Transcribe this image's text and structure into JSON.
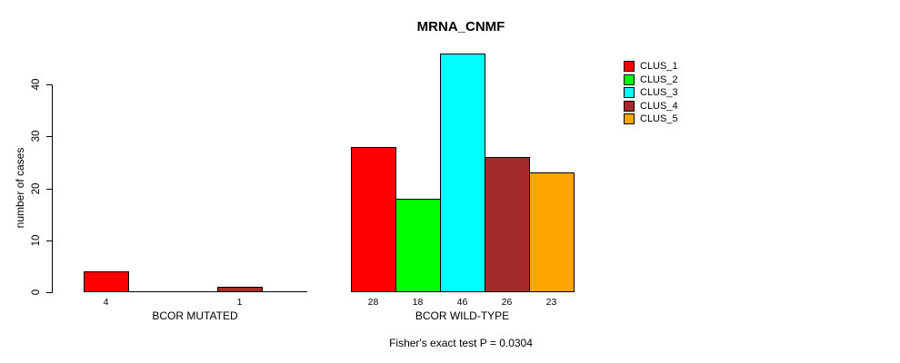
{
  "chart_data": {
    "type": "bar",
    "title": "MRNA_CNMF",
    "ylabel": "number of cases",
    "xlabel": "",
    "ylim": [
      0,
      46
    ],
    "yticks": [
      0,
      10,
      20,
      30,
      40
    ],
    "grid": false,
    "legend_position": "right",
    "series": [
      "CLUS_1",
      "CLUS_2",
      "CLUS_3",
      "CLUS_4",
      "CLUS_5"
    ],
    "series_colors": [
      "#ff0000",
      "#00ff00",
      "#00ffff",
      "#a52a2a",
      "#ffa500"
    ],
    "groups": [
      {
        "label": "BCOR MUTATED",
        "values": [
          4,
          0,
          0,
          1,
          0
        ],
        "bar_labels": [
          "4",
          "",
          "",
          "1",
          ""
        ]
      },
      {
        "label": "BCOR WILD-TYPE",
        "values": [
          28,
          18,
          46,
          26,
          23
        ],
        "bar_labels": [
          "28",
          "18",
          "46",
          "26",
          "23"
        ]
      }
    ],
    "legend": [
      {
        "label": "CLUS_1",
        "color": "#ff0000"
      },
      {
        "label": "CLUS_2",
        "color": "#00ff00"
      },
      {
        "label": "CLUS_3",
        "color": "#00ffff"
      },
      {
        "label": "CLUS_4",
        "color": "#a52a2a"
      },
      {
        "label": "CLUS_5",
        "color": "#ffa500"
      }
    ],
    "annotation": "Fisher's exact test P = 0.0304",
    "axis_color": "#000000",
    "background": "#ffffff"
  }
}
